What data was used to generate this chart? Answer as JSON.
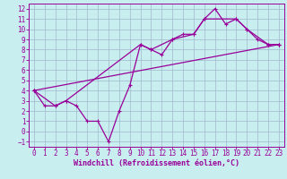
{
  "bg_color": "#c8eef0",
  "grid_color": "#a0b8cc",
  "line_color": "#990099",
  "xlabel": "Windchill (Refroidissement éolien,°C)",
  "xlim": [
    -0.5,
    23.5
  ],
  "ylim": [
    -1.5,
    12.5
  ],
  "xticks": [
    0,
    1,
    2,
    3,
    4,
    5,
    6,
    7,
    8,
    9,
    10,
    11,
    12,
    13,
    14,
    15,
    16,
    17,
    18,
    19,
    20,
    21,
    22,
    23
  ],
  "yticks": [
    -1,
    0,
    1,
    2,
    3,
    4,
    5,
    6,
    7,
    8,
    9,
    10,
    11,
    12
  ],
  "series1_x": [
    0,
    1,
    2,
    3,
    4,
    5,
    6,
    7,
    8,
    9,
    10,
    11,
    12,
    13,
    14,
    15,
    16,
    17,
    18,
    19,
    20,
    21,
    22,
    23
  ],
  "series1_y": [
    4.0,
    2.5,
    2.5,
    3.0,
    2.5,
    1.0,
    1.0,
    -1.0,
    2.0,
    4.5,
    8.5,
    8.0,
    7.5,
    9.0,
    9.5,
    9.5,
    11.0,
    12.0,
    10.5,
    11.0,
    10.0,
    9.0,
    8.5,
    8.5
  ],
  "series2_x": [
    0,
    2,
    3,
    10,
    11,
    13,
    15,
    16,
    19,
    20,
    22,
    23
  ],
  "series2_y": [
    4.0,
    2.5,
    3.0,
    8.5,
    8.0,
    9.0,
    9.5,
    11.0,
    11.0,
    10.0,
    8.5,
    8.5
  ],
  "series3_x": [
    0,
    23
  ],
  "series3_y": [
    4.0,
    8.5
  ],
  "tick_fontsize": 5.5,
  "xlabel_fontsize": 6.0,
  "marker_size": 2.5,
  "line_width": 0.9
}
